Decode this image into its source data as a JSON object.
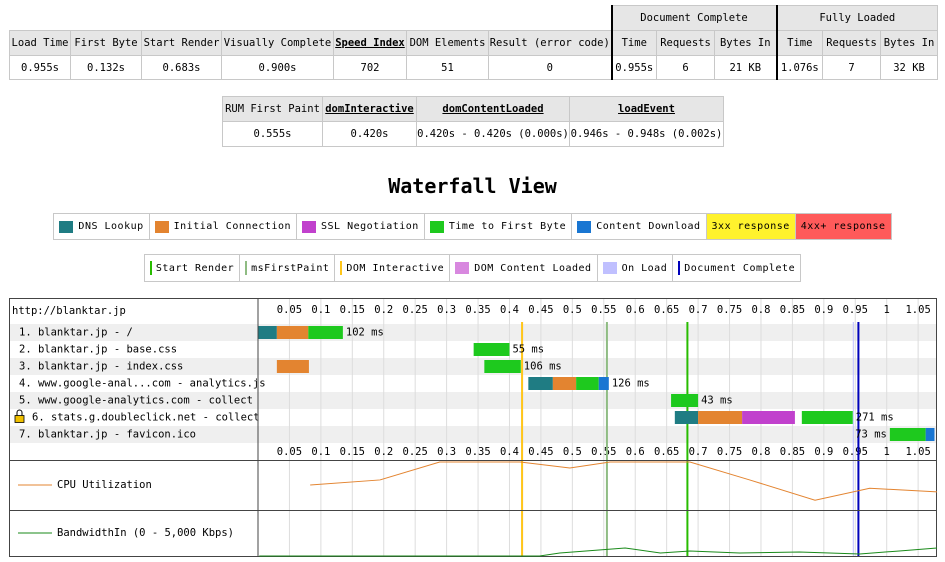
{
  "summary": {
    "group_headers": [
      "Document Complete",
      "Fully Loaded"
    ],
    "columns": [
      "Load Time",
      "First Byte",
      "Start Render",
      "Visually Complete",
      "Speed Index",
      "DOM Elements",
      "Result (error code)",
      "Time",
      "Requests",
      "Bytes In",
      "Time",
      "Requests",
      "Bytes In"
    ],
    "underlined": [
      4
    ],
    "row": [
      "0.955s",
      "0.132s",
      "0.683s",
      "0.900s",
      "702",
      "51",
      "0",
      "0.955s",
      "6",
      "21 KB",
      "1.076s",
      "7",
      "32 KB"
    ]
  },
  "paint": {
    "columns": [
      "RUM First Paint",
      "domInteractive",
      "domContentLoaded",
      "loadEvent"
    ],
    "underlined": [
      1,
      2,
      3
    ],
    "row": [
      "0.555s",
      "0.420s",
      "0.420s - 0.420s (0.000s)",
      "0.946s - 0.948s (0.002s)"
    ]
  },
  "waterfall": {
    "title": "Waterfall View",
    "legend1": [
      {
        "label": "DNS Lookup",
        "color": "#1f7c83",
        "style": "swatch"
      },
      {
        "label": "Initial Connection",
        "color": "#e38430",
        "style": "swatch"
      },
      {
        "label": "SSL Negotiation",
        "color": "#c141cd",
        "style": "swatch"
      },
      {
        "label": "Time to First Byte",
        "color": "#1ec91e",
        "style": "swatch"
      },
      {
        "label": "Content Download",
        "color": "#1976d2",
        "style": "swatch"
      },
      {
        "label": "3xx response",
        "color": "#fff22d",
        "style": "background"
      },
      {
        "label": "4xx+ response",
        "color": "#ff5a5a",
        "style": "background"
      }
    ],
    "legend2": [
      {
        "label": "Start Render",
        "color": "#28bc00",
        "style": "line"
      },
      {
        "label": "msFirstPaint",
        "color": "#8fbc83",
        "style": "line"
      },
      {
        "label": "DOM Interactive",
        "color": "#ffc61a",
        "style": "line"
      },
      {
        "label": "DOM Content Loaded",
        "color": "#d888df",
        "style": "box"
      },
      {
        "label": "On Load",
        "color": "#c0c0ff",
        "style": "box"
      },
      {
        "label": "Document Complete",
        "color": "#0000bb",
        "style": "line"
      }
    ],
    "page_url": "http://blanktar.jp",
    "xlim": [
      0,
      1.08
    ],
    "ticks": [
      0.05,
      0.1,
      0.15,
      0.2,
      0.25,
      0.3,
      0.35,
      0.4,
      0.45,
      0.5,
      0.55,
      0.6,
      0.65,
      0.7,
      0.75,
      0.8,
      0.85,
      0.9,
      0.95,
      1,
      1.05
    ],
    "requests": [
      {
        "label": "1. blanktar.jp - /",
        "secure": false,
        "duration": "102 ms",
        "segments": [
          {
            "legend": 0,
            "start": 0,
            "end": 0.03
          },
          {
            "legend": 1,
            "start": 0.03,
            "end": 0.08
          },
          {
            "legend": 3,
            "start": 0.08,
            "end": 0.135
          }
        ]
      },
      {
        "label": "2. blanktar.jp - base.css",
        "secure": false,
        "duration": "55 ms",
        "segments": [
          {
            "legend": 3,
            "start": 0.343,
            "end": 0.4
          }
        ]
      },
      {
        "label": "3. blanktar.jp - index.css",
        "secure": false,
        "duration": "106 ms",
        "segments": [
          {
            "legend": 1,
            "start": 0.03,
            "end": 0.081
          },
          {
            "legend": 3,
            "start": 0.36,
            "end": 0.418
          }
        ]
      },
      {
        "label": "4. www.google-anal...com - analytics.js",
        "secure": false,
        "duration": "126 ms",
        "segments": [
          {
            "legend": 0,
            "start": 0.43,
            "end": 0.469
          },
          {
            "legend": 1,
            "start": 0.469,
            "end": 0.506
          },
          {
            "legend": 3,
            "start": 0.506,
            "end": 0.542
          },
          {
            "legend": 4,
            "start": 0.542,
            "end": 0.558
          }
        ]
      },
      {
        "label": "5. www.google-analytics.com - collect",
        "secure": false,
        "duration": "43 ms",
        "segments": [
          {
            "legend": 3,
            "start": 0.657,
            "end": 0.7
          }
        ]
      },
      {
        "label": "6. stats.g.doubleclick.net - collect",
        "secure": true,
        "duration": "271 ms",
        "segments": [
          {
            "legend": 0,
            "start": 0.663,
            "end": 0.7
          },
          {
            "legend": 1,
            "start": 0.7,
            "end": 0.77
          },
          {
            "legend": 2,
            "start": 0.77,
            "end": 0.854
          },
          {
            "legend": 3,
            "start": 0.865,
            "end": 0.946
          }
        ]
      },
      {
        "label": "7. blanktar.jp - favicon.ico",
        "secure": false,
        "duration": "73 ms",
        "segments": [
          {
            "legend": 3,
            "start": 1.005,
            "end": 1.062
          },
          {
            "legend": 4,
            "start": 1.062,
            "end": 1.076
          }
        ]
      }
    ],
    "markers": [
      {
        "legend": 3,
        "start": 0.42,
        "end": 0.42
      },
      {
        "legend": 4,
        "start": 0.946,
        "end": 0.948
      },
      {
        "legend": 2,
        "start": 0.42
      },
      {
        "legend": 1,
        "start": 0.555
      },
      {
        "legend": 0,
        "start": 0.683
      },
      {
        "legend": 5,
        "start": 0.955
      }
    ],
    "cpu": {
      "label": "CPU Utilization",
      "color": "#e38430",
      "ylim": [
        0,
        100
      ],
      "t": [
        0.083,
        0.194,
        0.289,
        0.417,
        0.496,
        0.56,
        0.687,
        0.782,
        0.886,
        0.973,
        1.08
      ],
      "values": [
        50,
        61,
        100,
        100,
        87,
        100,
        100,
        61,
        17,
        43,
        35
      ]
    },
    "bandwidth": {
      "label": "BandwidthIn (0 - 5,000 Kbps)",
      "color": "#1a8a1a",
      "ylim": [
        0,
        5000
      ],
      "t": [
        0.002,
        0.448,
        0.48,
        0.584,
        0.64,
        0.687,
        0.766,
        0.861,
        0.957,
        1.02,
        1.08
      ],
      "values": [
        0,
        0,
        340,
        910,
        340,
        570,
        340,
        450,
        230,
        570,
        910
      ]
    }
  }
}
